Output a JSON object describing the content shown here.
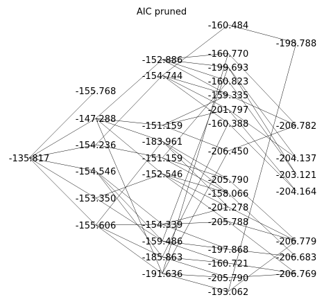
{
  "title": "AIC pruned",
  "colors": {
    "edge": "#000000",
    "text": "#000000",
    "background": "#ffffff"
  },
  "nodes": [
    {
      "id": "n0",
      "label": "-135.817"
    },
    {
      "id": "a1",
      "label": "-155.768"
    },
    {
      "id": "a2",
      "label": "-147.288"
    },
    {
      "id": "a3",
      "label": "-154.236"
    },
    {
      "id": "a4",
      "label": "-154.546"
    },
    {
      "id": "a5",
      "label": "-153.350"
    },
    {
      "id": "a6",
      "label": "-155.606"
    },
    {
      "id": "b1",
      "label": "-152.886"
    },
    {
      "id": "b2",
      "label": "-154.744"
    },
    {
      "id": "b3",
      "label": "-151.159"
    },
    {
      "id": "b4",
      "label": "-183.961"
    },
    {
      "id": "b5",
      "label": "-151.159"
    },
    {
      "id": "b6",
      "label": "-152.546"
    },
    {
      "id": "b7",
      "label": "-154.339"
    },
    {
      "id": "b8",
      "label": "-159.486"
    },
    {
      "id": "b9",
      "label": "-185.863"
    },
    {
      "id": "b10",
      "label": "-191.636"
    },
    {
      "id": "c1",
      "label": "-160.484"
    },
    {
      "id": "c2",
      "label": "-160.770"
    },
    {
      "id": "c3",
      "label": "-199.693"
    },
    {
      "id": "c4",
      "label": "-160.823"
    },
    {
      "id": "c5",
      "label": "-159.335"
    },
    {
      "id": "c6",
      "label": "-201.797"
    },
    {
      "id": "c7",
      "label": "-160.388"
    },
    {
      "id": "c8",
      "label": "-206.450"
    },
    {
      "id": "c9",
      "label": "-205.790"
    },
    {
      "id": "c10",
      "label": "-158.066"
    },
    {
      "id": "c11",
      "label": "-201.278"
    },
    {
      "id": "c12",
      "label": "-205.788"
    },
    {
      "id": "c13",
      "label": "-197.868"
    },
    {
      "id": "c14",
      "label": "-160.721"
    },
    {
      "id": "c15",
      "label": "-205.790"
    },
    {
      "id": "c16",
      "label": "-193.062"
    },
    {
      "id": "d1",
      "label": "-198.788"
    },
    {
      "id": "d2",
      "label": "-206.782"
    },
    {
      "id": "d3",
      "label": "-204.137"
    },
    {
      "id": "d4",
      "label": "-203.121"
    },
    {
      "id": "d5",
      "label": "-204.164"
    },
    {
      "id": "d6",
      "label": "-206.779"
    },
    {
      "id": "d7",
      "label": "-206.683"
    },
    {
      "id": "d8",
      "label": "-206.769"
    }
  ],
  "edges": [
    [
      "n0",
      "a1"
    ],
    [
      "n0",
      "a2"
    ],
    [
      "n0",
      "a3"
    ],
    [
      "n0",
      "a4"
    ],
    [
      "n0",
      "a5"
    ],
    [
      "n0",
      "a6"
    ],
    [
      "a2",
      "b1"
    ],
    [
      "a2",
      "b3"
    ],
    [
      "a2",
      "b4"
    ],
    [
      "a2",
      "b6"
    ],
    [
      "a2",
      "b10"
    ],
    [
      "a3",
      "b2"
    ],
    [
      "a3",
      "b5"
    ],
    [
      "a4",
      "b7"
    ],
    [
      "a4",
      "b8"
    ],
    [
      "a4",
      "b9"
    ],
    [
      "a5",
      "b6"
    ],
    [
      "a5",
      "b8"
    ],
    [
      "a6",
      "b7"
    ],
    [
      "a6",
      "b9"
    ],
    [
      "a6",
      "b10"
    ],
    [
      "a6",
      "b4"
    ],
    [
      "b1",
      "c2"
    ],
    [
      "b1",
      "c3"
    ],
    [
      "b1",
      "c4"
    ],
    [
      "b1",
      "c5"
    ],
    [
      "b2",
      "c1"
    ],
    [
      "b2",
      "c5"
    ],
    [
      "b2",
      "c6"
    ],
    [
      "b2",
      "c7"
    ],
    [
      "b3",
      "c5"
    ],
    [
      "b3",
      "c8"
    ],
    [
      "b3",
      "c6"
    ],
    [
      "b4",
      "c9"
    ],
    [
      "b4",
      "c10"
    ],
    [
      "b4",
      "c11"
    ],
    [
      "b5",
      "c4"
    ],
    [
      "b5",
      "c9"
    ],
    [
      "b5",
      "c10"
    ],
    [
      "b6",
      "c11"
    ],
    [
      "b6",
      "c12"
    ],
    [
      "b6",
      "c10"
    ],
    [
      "b7",
      "c12"
    ],
    [
      "b7",
      "c13"
    ],
    [
      "b7",
      "c11"
    ],
    [
      "b8",
      "c13"
    ],
    [
      "b8",
      "c14"
    ],
    [
      "b8",
      "c3"
    ],
    [
      "b9",
      "c14"
    ],
    [
      "b9",
      "c15"
    ],
    [
      "b9",
      "c7"
    ],
    [
      "b10",
      "c2"
    ],
    [
      "b10",
      "c15"
    ],
    [
      "b10",
      "c16"
    ],
    [
      "b10",
      "c8"
    ],
    [
      "c1",
      "d1"
    ],
    [
      "c2",
      "d2"
    ],
    [
      "c3",
      "d3"
    ],
    [
      "c4",
      "d4"
    ],
    [
      "c5",
      "d2"
    ],
    [
      "c6",
      "d3"
    ],
    [
      "c7",
      "d5"
    ],
    [
      "c8",
      "d2"
    ],
    [
      "c9",
      "d6"
    ],
    [
      "c10",
      "d7"
    ],
    [
      "c11",
      "d6"
    ],
    [
      "c12",
      "d8"
    ],
    [
      "c13",
      "d7"
    ],
    [
      "c14",
      "d8"
    ],
    [
      "c15",
      "d8"
    ],
    [
      "c16",
      "d1"
    ],
    [
      "c16",
      "d6"
    ],
    [
      "c3",
      "d4"
    ],
    [
      "c6",
      "d5"
    ],
    [
      "c12",
      "d6"
    ]
  ]
}
